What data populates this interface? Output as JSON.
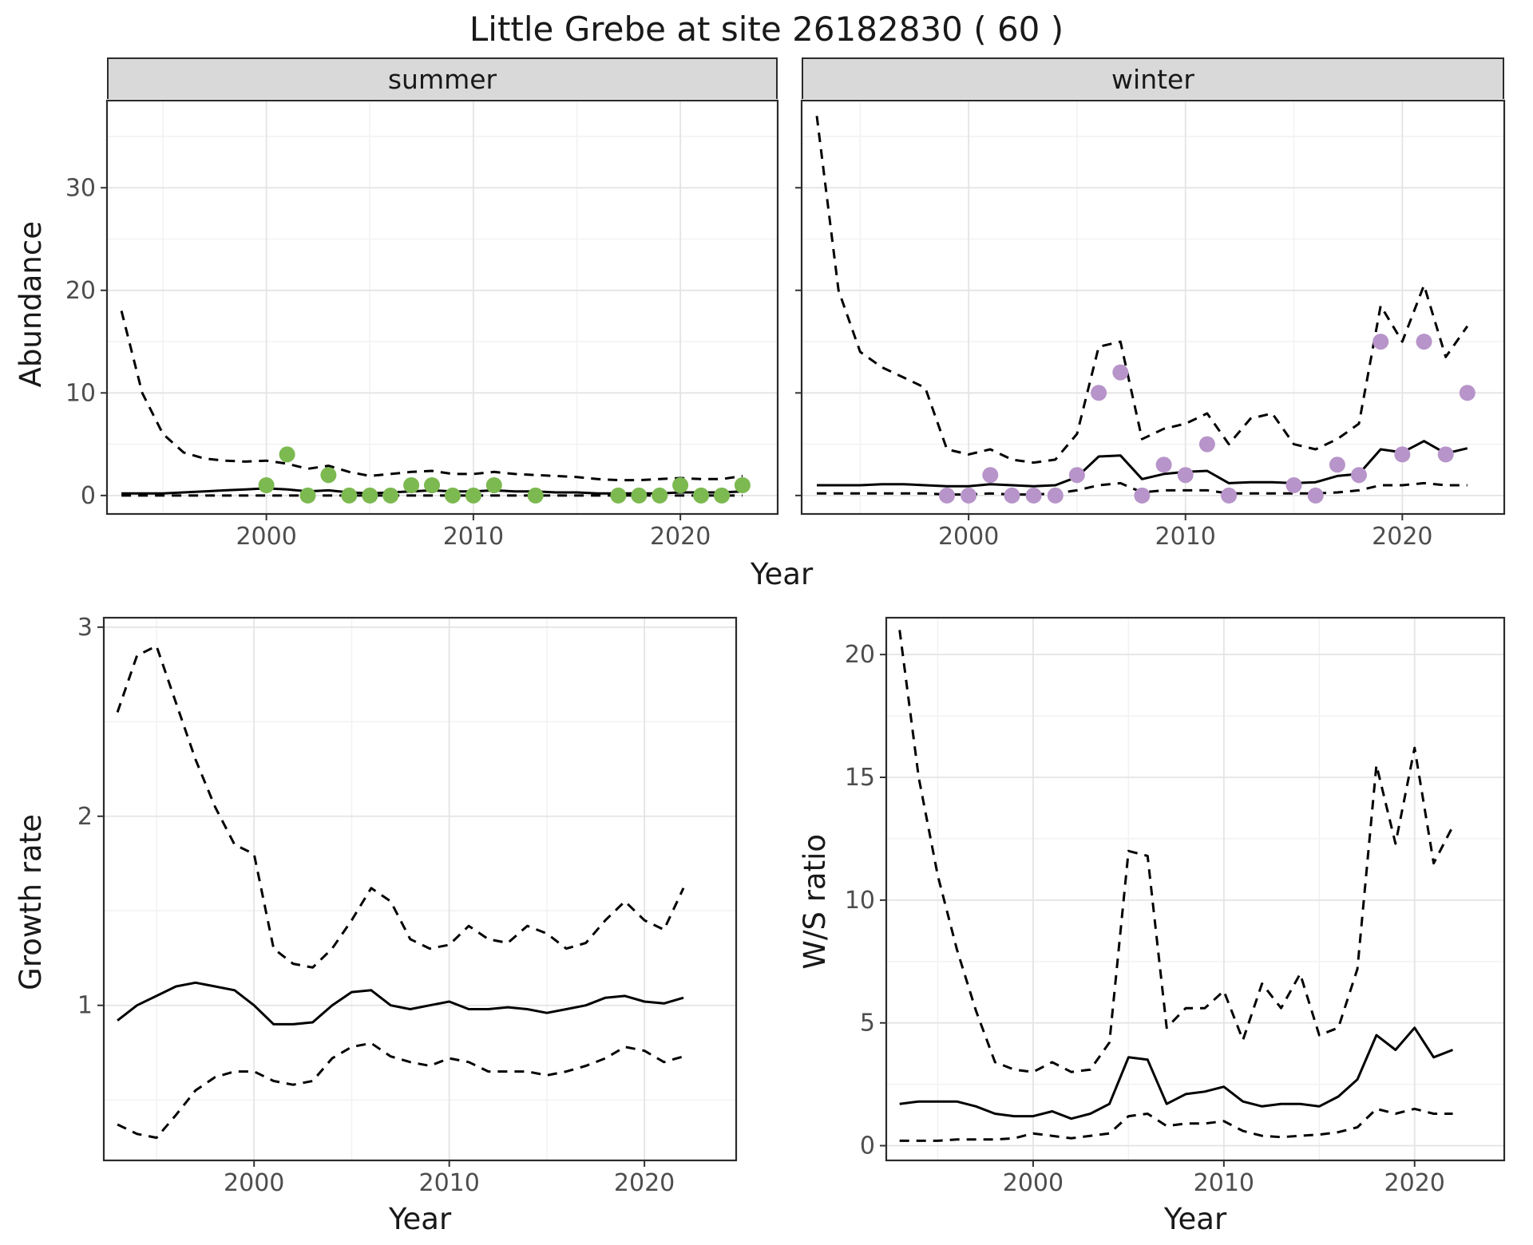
{
  "title": "Little Grebe at site 26182830 ( 60 )",
  "colors": {
    "line": "#000000",
    "summer_points": "#7cb950",
    "winter_points": "#b794c9",
    "strip_bg": "#d9d9d9",
    "panel_border": "#2b2b2b",
    "grid_major": "#e4e4e4",
    "grid_minor": "#f1f1f1",
    "tick": "#333333",
    "tick_text": "#4d4d4d"
  },
  "chart_data": [
    {
      "id": "summer",
      "type": "line",
      "strip_label": "summer",
      "xlabel": "Year",
      "ylabel": "Abundance",
      "xlim": [
        1992.3,
        2024.7
      ],
      "ylim": [
        -1.8,
        38.5
      ],
      "xticks": [
        2000,
        2010,
        2020
      ],
      "yticks": [
        0,
        10,
        20,
        30
      ],
      "xticks_minor": [
        1995,
        2005,
        2015
      ],
      "yticks_minor": [
        5,
        15,
        25,
        35
      ],
      "x": [
        1993,
        1994,
        1995,
        1996,
        1997,
        1998,
        1999,
        2000,
        2001,
        2002,
        2003,
        2004,
        2005,
        2006,
        2007,
        2008,
        2009,
        2010,
        2011,
        2012,
        2013,
        2014,
        2015,
        2016,
        2017,
        2018,
        2019,
        2020,
        2021,
        2022,
        2023
      ],
      "series": [
        {
          "name": "fit",
          "style": "solid",
          "values": [
            0.2,
            0.2,
            0.2,
            0.3,
            0.4,
            0.5,
            0.6,
            0.7,
            0.6,
            0.4,
            0.5,
            0.3,
            0.2,
            0.3,
            0.4,
            0.5,
            0.4,
            0.4,
            0.5,
            0.4,
            0.4,
            0.3,
            0.3,
            0.2,
            0.2,
            0.2,
            0.2,
            0.3,
            0.3,
            0.3,
            0.4
          ]
        },
        {
          "name": "upper_ci",
          "style": "dashed",
          "values": [
            18,
            10,
            6,
            4.2,
            3.6,
            3.4,
            3.3,
            3.4,
            3.1,
            2.6,
            2.9,
            2.3,
            1.9,
            2.1,
            2.3,
            2.4,
            2.1,
            2.1,
            2.3,
            2.1,
            2.0,
            1.9,
            1.8,
            1.6,
            1.5,
            1.5,
            1.6,
            1.7,
            1.6,
            1.6,
            1.9
          ]
        },
        {
          "name": "lower_ci",
          "style": "dashed",
          "values": [
            0,
            0,
            0,
            0,
            0,
            0,
            0,
            0,
            0,
            0,
            0,
            0,
            0,
            0,
            0,
            0,
            0,
            0,
            0,
            0,
            0,
            0,
            0,
            0,
            0,
            0,
            0,
            0,
            0,
            0,
            0
          ]
        }
      ],
      "points": {
        "color_key": "summer_points",
        "x": [
          2000,
          2001,
          2002,
          2003,
          2004,
          2005,
          2006,
          2007,
          2008,
          2009,
          2010,
          2011,
          2013,
          2017,
          2018,
          2019,
          2020,
          2021,
          2022,
          2023
        ],
        "y": [
          1,
          4,
          0,
          2,
          0,
          0,
          0,
          1,
          1,
          0,
          0,
          1,
          0,
          0,
          0,
          0,
          1,
          0,
          0,
          1
        ]
      }
    },
    {
      "id": "winter",
      "type": "line",
      "strip_label": "winter",
      "xlabel": "Year",
      "ylabel": "Abundance",
      "xlim": [
        1992.3,
        2024.7
      ],
      "ylim": [
        -1.8,
        38.5
      ],
      "xticks": [
        2000,
        2010,
        2020
      ],
      "yticks": [
        0,
        10,
        20,
        30
      ],
      "xticks_minor": [
        1995,
        2005,
        2015
      ],
      "yticks_minor": [
        5,
        15,
        25,
        35
      ],
      "x": [
        1993,
        1994,
        1995,
        1996,
        1997,
        1998,
        1999,
        2000,
        2001,
        2002,
        2003,
        2004,
        2005,
        2006,
        2007,
        2008,
        2009,
        2010,
        2011,
        2012,
        2013,
        2014,
        2015,
        2016,
        2017,
        2018,
        2019,
        2020,
        2021,
        2022,
        2023
      ],
      "series": [
        {
          "name": "fit",
          "style": "solid",
          "values": [
            1.0,
            1.0,
            1.0,
            1.1,
            1.1,
            1.0,
            0.9,
            0.9,
            1.1,
            1.0,
            0.9,
            1.0,
            1.8,
            3.8,
            3.9,
            1.6,
            2.1,
            2.3,
            2.4,
            1.2,
            1.3,
            1.3,
            1.2,
            1.3,
            1.9,
            2.1,
            4.5,
            4.2,
            5.3,
            4.1,
            4.6
          ]
        },
        {
          "name": "upper_ci",
          "style": "dashed",
          "values": [
            37,
            20,
            14,
            12.5,
            11.5,
            10.5,
            4.5,
            4.0,
            4.5,
            3.5,
            3.2,
            3.5,
            6.0,
            14.5,
            15.0,
            5.5,
            6.5,
            7.0,
            8.0,
            5.0,
            7.5,
            8.0,
            5.0,
            4.5,
            5.5,
            7.0,
            18.5,
            15.0,
            20.5,
            13.5,
            16.5
          ]
        },
        {
          "name": "lower_ci",
          "style": "dashed",
          "values": [
            0.2,
            0.2,
            0.2,
            0.2,
            0.2,
            0.2,
            0.1,
            0.1,
            0.2,
            0.1,
            0.1,
            0.2,
            0.5,
            1.0,
            1.2,
            0.3,
            0.5,
            0.5,
            0.5,
            0.2,
            0.2,
            0.2,
            0.2,
            0.2,
            0.3,
            0.5,
            1.0,
            1.0,
            1.2,
            1.0,
            1.0
          ]
        }
      ],
      "points": {
        "color_key": "winter_points",
        "x": [
          1999,
          2000,
          2001,
          2002,
          2003,
          2004,
          2005,
          2006,
          2007,
          2008,
          2009,
          2010,
          2011,
          2012,
          2015,
          2016,
          2017,
          2018,
          2019,
          2020,
          2021,
          2022,
          2023
        ],
        "y": [
          0,
          0,
          2,
          0,
          0,
          0,
          2,
          10,
          12,
          0,
          3,
          2,
          5,
          0,
          1,
          0,
          3,
          2,
          15,
          4,
          15,
          4,
          10
        ]
      }
    },
    {
      "id": "growth",
      "type": "line",
      "strip_label": "",
      "xlabel": "Year",
      "ylabel": "Growth rate",
      "xlim": [
        1992.3,
        2024.7
      ],
      "ylim": [
        0.18,
        3.05
      ],
      "xticks": [
        2000,
        2010,
        2020
      ],
      "yticks": [
        1,
        2,
        3
      ],
      "xticks_minor": [
        1995,
        2005,
        2015
      ],
      "yticks_minor": [
        0.5,
        1.5,
        2.5
      ],
      "x": [
        1993,
        1994,
        1995,
        1996,
        1997,
        1998,
        1999,
        2000,
        2001,
        2002,
        2003,
        2004,
        2005,
        2006,
        2007,
        2008,
        2009,
        2010,
        2011,
        2012,
        2013,
        2014,
        2015,
        2016,
        2017,
        2018,
        2019,
        2020,
        2021,
        2022
      ],
      "series": [
        {
          "name": "fit",
          "style": "solid",
          "values": [
            0.92,
            1.0,
            1.05,
            1.1,
            1.12,
            1.1,
            1.08,
            1.0,
            0.9,
            0.9,
            0.91,
            1.0,
            1.07,
            1.08,
            1.0,
            0.98,
            1.0,
            1.02,
            0.98,
            0.98,
            0.99,
            0.98,
            0.96,
            0.98,
            1.0,
            1.04,
            1.05,
            1.02,
            1.01,
            1.04
          ]
        },
        {
          "name": "upper_ci",
          "style": "dashed",
          "values": [
            2.55,
            2.85,
            2.9,
            2.6,
            2.3,
            2.05,
            1.85,
            1.8,
            1.3,
            1.22,
            1.2,
            1.3,
            1.45,
            1.62,
            1.55,
            1.35,
            1.3,
            1.32,
            1.42,
            1.35,
            1.33,
            1.42,
            1.38,
            1.3,
            1.33,
            1.45,
            1.55,
            1.45,
            1.4,
            1.62
          ]
        },
        {
          "name": "lower_ci",
          "style": "dashed",
          "values": [
            0.37,
            0.32,
            0.3,
            0.42,
            0.55,
            0.62,
            0.65,
            0.65,
            0.6,
            0.58,
            0.6,
            0.72,
            0.78,
            0.8,
            0.73,
            0.7,
            0.68,
            0.72,
            0.7,
            0.65,
            0.65,
            0.65,
            0.63,
            0.65,
            0.68,
            0.72,
            0.78,
            0.76,
            0.7,
            0.73
          ]
        }
      ],
      "points": null
    },
    {
      "id": "ws",
      "type": "line",
      "strip_label": "",
      "xlabel": "Year",
      "ylabel": "W/S ratio",
      "xlim": [
        1992.3,
        2024.7
      ],
      "ylim": [
        -0.6,
        21.5
      ],
      "xticks": [
        2000,
        2010,
        2020
      ],
      "yticks": [
        0,
        5,
        10,
        15,
        20
      ],
      "xticks_minor": [
        1995,
        2005,
        2015
      ],
      "yticks_minor": [
        2.5,
        7.5,
        12.5,
        17.5
      ],
      "x": [
        1993,
        1994,
        1995,
        1996,
        1997,
        1998,
        1999,
        2000,
        2001,
        2002,
        2003,
        2004,
        2005,
        2006,
        2007,
        2008,
        2009,
        2010,
        2011,
        2012,
        2013,
        2014,
        2015,
        2016,
        2017,
        2018,
        2019,
        2020,
        2021,
        2022
      ],
      "series": [
        {
          "name": "fit",
          "style": "solid",
          "values": [
            1.7,
            1.8,
            1.8,
            1.8,
            1.6,
            1.3,
            1.2,
            1.2,
            1.4,
            1.1,
            1.3,
            1.7,
            3.6,
            3.5,
            1.7,
            2.1,
            2.2,
            2.4,
            1.8,
            1.6,
            1.7,
            1.7,
            1.6,
            2.0,
            2.7,
            4.5,
            3.9,
            4.8,
            3.6,
            3.9
          ]
        },
        {
          "name": "upper_ci",
          "style": "dashed",
          "values": [
            21,
            15,
            11,
            8,
            5.5,
            3.4,
            3.1,
            3.0,
            3.4,
            3.0,
            3.1,
            4.2,
            12.0,
            11.8,
            4.8,
            5.6,
            5.6,
            6.3,
            4.3,
            6.6,
            5.6,
            7.0,
            4.5,
            4.8,
            7.2,
            15.5,
            12.3,
            16.2,
            11.5,
            13.0
          ]
        },
        {
          "name": "lower_ci",
          "style": "dashed",
          "values": [
            0.2,
            0.2,
            0.2,
            0.25,
            0.25,
            0.25,
            0.3,
            0.5,
            0.4,
            0.3,
            0.4,
            0.5,
            1.2,
            1.3,
            0.8,
            0.9,
            0.9,
            1.0,
            0.6,
            0.4,
            0.35,
            0.4,
            0.45,
            0.55,
            0.75,
            1.5,
            1.3,
            1.5,
            1.3,
            1.3
          ]
        }
      ],
      "points": null
    }
  ]
}
